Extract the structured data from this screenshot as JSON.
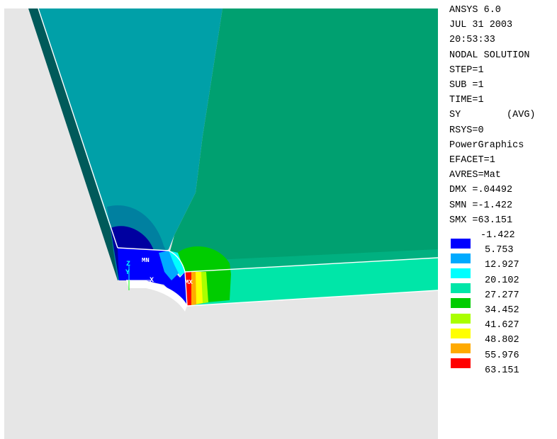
{
  "info": {
    "lines": [
      "ANSYS 6.0",
      "JUL 31 2003",
      "20:53:33",
      "NODAL SOLUTION",
      "STEP=1",
      "SUB =1",
      "TIME=1",
      "SY        (AVG)",
      "RSYS=0",
      "PowerGraphics",
      "EFACET=1",
      "AVRES=Mat",
      "DMX =.04492",
      "SMN =-1.422",
      "SMX =63.151"
    ]
  },
  "legend": {
    "levels": [
      {
        "value": "-1.422",
        "color": ""
      },
      {
        "value": "5.753",
        "color": "#0000ff"
      },
      {
        "value": "12.927",
        "color": "#00aaff"
      },
      {
        "value": "20.102",
        "color": "#00ffff"
      },
      {
        "value": "27.277",
        "color": "#00e6a8"
      },
      {
        "value": "34.452",
        "color": "#00cc00"
      },
      {
        "value": "41.627",
        "color": "#aaff00"
      },
      {
        "value": "48.802",
        "color": "#ffff00"
      },
      {
        "value": "55.976",
        "color": "#ffaa00"
      },
      {
        "value": "63.151",
        "color": "#ff0000"
      }
    ]
  },
  "markers": {
    "min_label": "MN",
    "max_label": "MX",
    "axis_z": "Z",
    "axis_y": "Y",
    "axis_x": "X"
  },
  "colors": {
    "background": "#e6e6e6",
    "teal_band": "#00a0a8",
    "green_band": "#00a070",
    "dark_edge": "#005a5a",
    "blue_band": "#0000ff",
    "navy_band": "#0000a0"
  }
}
